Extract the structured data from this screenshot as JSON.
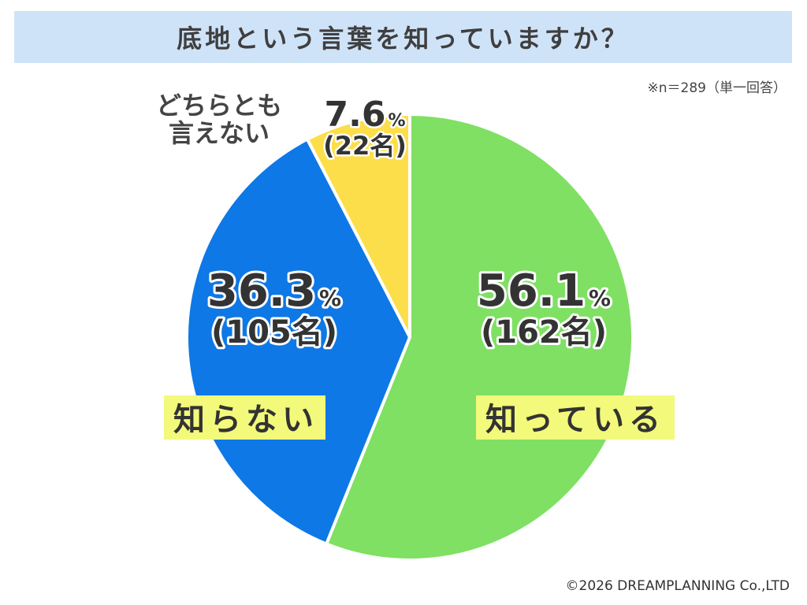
{
  "title": "底地という言葉を知っていますか？",
  "note": "※n＝289（単一回答）",
  "copyright": "©2026 DREAMPLANNING Co.,LTD",
  "colors": {
    "title_bg": "#cfe3f8",
    "label_highlight": "#f3f97a"
  },
  "chart_data": {
    "type": "pie",
    "total_n": 289,
    "slices": [
      {
        "label": "知っている",
        "percent": 56.1,
        "percent_text": "56.1",
        "count_text": "(162名)",
        "count": 162,
        "color": "#7fe063"
      },
      {
        "label": "知らない",
        "percent": 36.3,
        "percent_text": "36.3",
        "count_text": "(105名)",
        "count": 105,
        "color": "#0e78e6"
      },
      {
        "label_lines": [
          "どちらとも",
          "言えない"
        ],
        "percent": 7.6,
        "percent_text": "7.6",
        "count_text": "(22名)",
        "count": 22,
        "color": "#fcde4a"
      }
    ],
    "percent_symbol": "%"
  }
}
